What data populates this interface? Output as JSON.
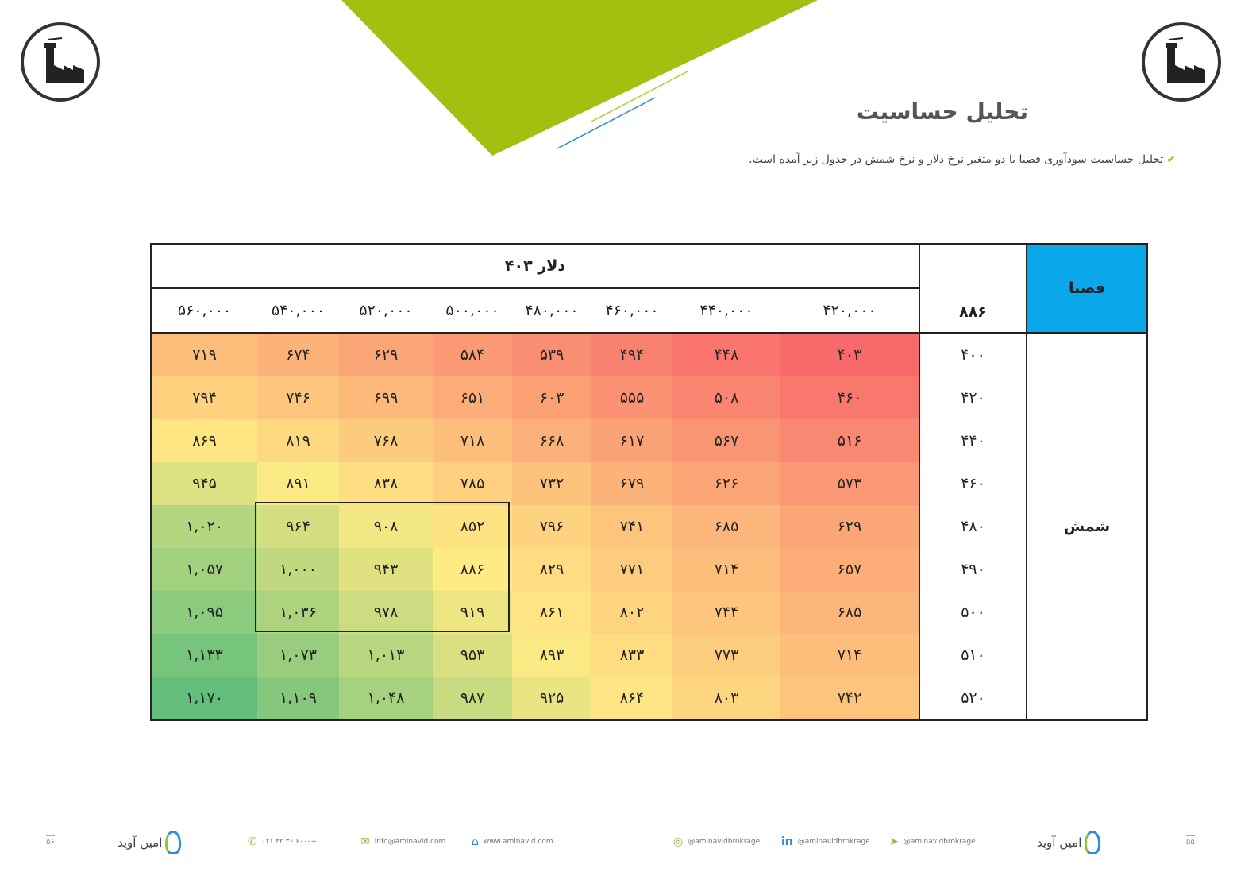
{
  "page": {
    "title": "تحلیل حساسیت",
    "intro": "تحلیل حساسیت سودآوری فصبا با دو متغیر نرخ دلار و نرخ شمش در جدول زیر آمده است.",
    "colors": {
      "green_accent": "#a2c010",
      "blue_accent": "#0aa8ea",
      "line_blue": "#2a8fd6"
    }
  },
  "table": {
    "company": "فصبا",
    "base_value": "۸۸۶",
    "column_variable": "دلار ۴۰۳",
    "row_variable": "شمش",
    "column_headers": [
      "۴۲۰,۰۰۰",
      "۴۴۰,۰۰۰",
      "۴۶۰,۰۰۰",
      "۴۸۰,۰۰۰",
      "۵۰۰,۰۰۰",
      "۵۲۰,۰۰۰",
      "۵۴۰,۰۰۰",
      "۵۶۰,۰۰۰"
    ],
    "row_headers": [
      "۴۰۰",
      "۴۲۰",
      "۴۴۰",
      "۴۶۰",
      "۴۸۰",
      "۴۹۰",
      "۵۰۰",
      "۵۱۰",
      "۵۲۰"
    ],
    "cells": [
      [
        "۴۰۳",
        "۴۴۸",
        "۴۹۴",
        "۵۳۹",
        "۵۸۴",
        "۶۲۹",
        "۶۷۴",
        "۷۱۹"
      ],
      [
        "۴۶۰",
        "۵۰۸",
        "۵۵۵",
        "۶۰۳",
        "۶۵۱",
        "۶۹۹",
        "۷۴۶",
        "۷۹۴"
      ],
      [
        "۵۱۶",
        "۵۶۷",
        "۶۱۷",
        "۶۶۸",
        "۷۱۸",
        "۷۶۸",
        "۸۱۹",
        "۸۶۹"
      ],
      [
        "۵۷۳",
        "۶۲۶",
        "۶۷۹",
        "۷۳۲",
        "۷۸۵",
        "۸۳۸",
        "۸۹۱",
        "۹۴۵"
      ],
      [
        "۶۲۹",
        "۶۸۵",
        "۷۴۱",
        "۷۹۶",
        "۸۵۲",
        "۹۰۸",
        "۹۶۴",
        "۱,۰۲۰"
      ],
      [
        "۶۵۷",
        "۷۱۴",
        "۷۷۱",
        "۸۲۹",
        "۸۸۶",
        "۹۴۳",
        "۱,۰۰۰",
        "۱,۰۵۷"
      ],
      [
        "۶۸۵",
        "۷۴۴",
        "۸۰۲",
        "۸۶۱",
        "۹۱۹",
        "۹۷۸",
        "۱,۰۳۶",
        "۱,۰۹۵"
      ],
      [
        "۷۱۴",
        "۷۷۳",
        "۸۳۳",
        "۸۹۳",
        "۹۵۳",
        "۱,۰۱۳",
        "۱,۰۷۳",
        "۱,۱۳۳"
      ],
      [
        "۷۴۲",
        "۸۰۳",
        "۸۶۴",
        "۹۲۵",
        "۹۸۷",
        "۱,۰۴۸",
        "۱,۱۰۹",
        "۱,۱۷۰"
      ]
    ],
    "cell_values_numeric": [
      [
        403,
        448,
        494,
        539,
        584,
        629,
        674,
        719
      ],
      [
        460,
        508,
        555,
        603,
        651,
        699,
        746,
        794
      ],
      [
        516,
        567,
        617,
        668,
        718,
        768,
        819,
        869
      ],
      [
        573,
        626,
        679,
        732,
        785,
        838,
        891,
        945
      ],
      [
        629,
        685,
        741,
        796,
        852,
        908,
        964,
        1020
      ],
      [
        657,
        714,
        771,
        829,
        886,
        943,
        1000,
        1057
      ],
      [
        685,
        744,
        802,
        861,
        919,
        978,
        1036,
        1095
      ],
      [
        714,
        773,
        833,
        893,
        953,
        1013,
        1073,
        1133
      ],
      [
        742,
        803,
        864,
        925,
        987,
        1048,
        1109,
        1170
      ]
    ],
    "scale_colors": {
      "low": "#f8696b",
      "mid": "#ffeb84",
      "high": "#63be7b"
    }
  },
  "footer": {
    "brand": "امین آوید",
    "phone": "۰۲۱ ۴۲ ۳۶ ۶۰۰۰+",
    "email": "info@aminavid.com",
    "website": "www.aminavid.com",
    "instagram": "@aminavidbrokrage",
    "linkedin": "@aminavidbrokrage",
    "telegram": "@aminavidbrokrage",
    "page_left": "۵۶",
    "page_right": "۵۵"
  }
}
